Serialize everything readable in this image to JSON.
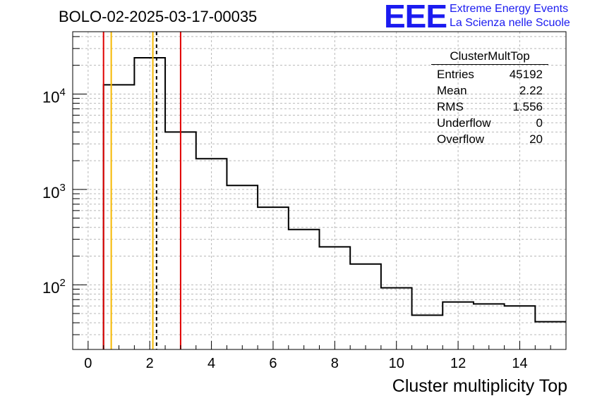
{
  "chart_data": {
    "type": "histogram",
    "title": "BOLO-02-2025-03-17-00035",
    "xlabel": "Cluster multiplicity Top",
    "ylabel": "",
    "xlim": [
      -0.5,
      15.5
    ],
    "ylim": [
      21,
      45000
    ],
    "yscale": "log",
    "grid": true,
    "x_ticks": [
      0,
      2,
      4,
      6,
      8,
      10,
      12,
      14
    ],
    "x_tick_labels": [
      "0",
      "2",
      "4",
      "6",
      "8",
      "10",
      "12",
      "14"
    ],
    "y_ticks": [
      100,
      1000,
      10000
    ],
    "y_tick_bases": [
      "10",
      "10",
      "10"
    ],
    "y_tick_exps": [
      "2",
      "3",
      "4"
    ],
    "bin_edges": [
      0.5,
      1.5,
      2.5,
      3.5,
      4.5,
      5.5,
      6.5,
      7.5,
      8.5,
      9.5,
      10.5,
      11.5,
      12.5,
      13.5,
      14.5,
      15.5
    ],
    "values": [
      12500,
      24000,
      4000,
      2100,
      1100,
      650,
      380,
      250,
      165,
      93,
      48,
      66,
      63,
      60,
      41
    ],
    "vertical_lines": [
      {
        "x": 0.5,
        "color": "#e00000",
        "style": "solid"
      },
      {
        "x": 0.75,
        "color": "#f5b800",
        "style": "solid"
      },
      {
        "x": 2.1,
        "color": "#f5b800",
        "style": "solid"
      },
      {
        "x": 2.22,
        "color": "#000000",
        "style": "dashed"
      },
      {
        "x": 3.0,
        "color": "#e00000",
        "style": "solid"
      }
    ],
    "stats_box": {
      "title": "ClusterMultTop",
      "rows": [
        {
          "label": "Entries",
          "value": "45192"
        },
        {
          "label": "Mean",
          "value": "2.22"
        },
        {
          "label": "RMS",
          "value": "1.556"
        },
        {
          "label": "Underflow",
          "value": "0"
        },
        {
          "label": "Overflow",
          "value": "20"
        }
      ]
    }
  },
  "logo": {
    "mark": "EEE",
    "line1": "Extreme Energy Events",
    "line2": "La Scienza nelle Scuole"
  }
}
